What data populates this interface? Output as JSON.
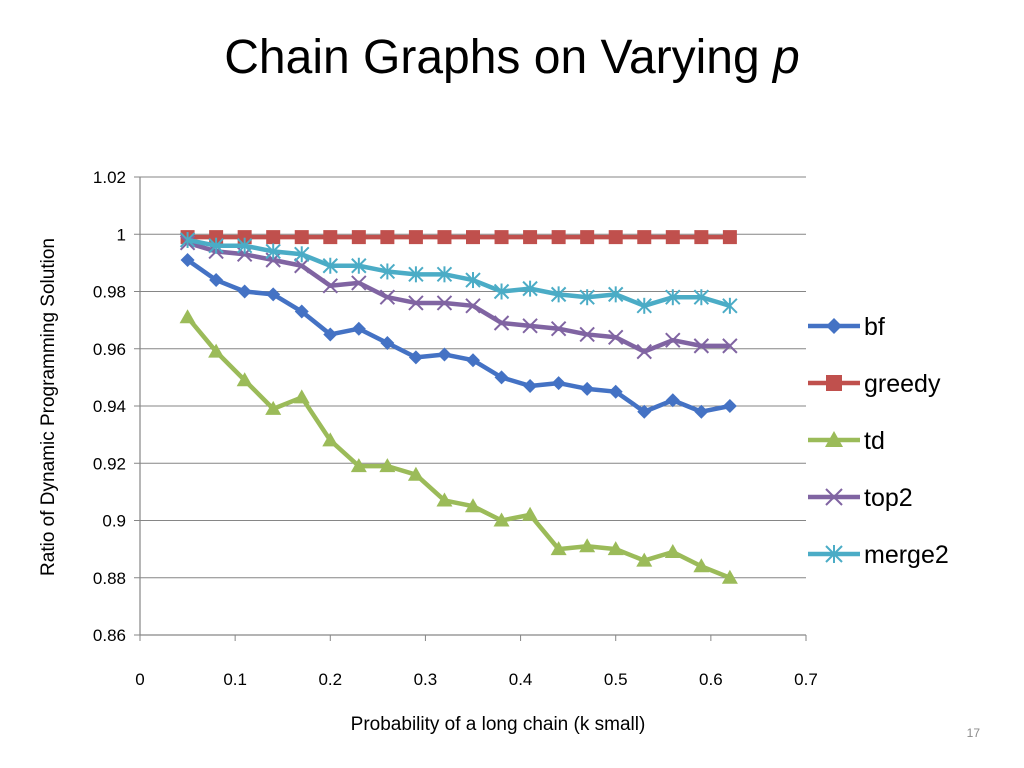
{
  "slide": {
    "title_main": "Chain Graphs on Varying ",
    "title_italic": "p",
    "page_number": "17"
  },
  "chart_data": {
    "type": "line",
    "title": "",
    "xlabel": "Probability of a long chain (k small)",
    "ylabel": "Ratio of Dynamic Programming Solution",
    "xlim": [
      0,
      0.7
    ],
    "ylim": [
      0.86,
      1.02
    ],
    "x_ticks": [
      "0",
      "0.1",
      "0.2",
      "0.3",
      "0.4",
      "0.5",
      "0.6",
      "0.7"
    ],
    "y_ticks": [
      "0.86",
      "0.88",
      "0.9",
      "0.92",
      "0.94",
      "0.96",
      "0.98",
      "1",
      "1.02"
    ],
    "grid": "horizontal",
    "legend_position": "right",
    "x": [
      0.05,
      0.08,
      0.11,
      0.14,
      0.17,
      0.2,
      0.23,
      0.26,
      0.29,
      0.32,
      0.35,
      0.38,
      0.41,
      0.44,
      0.47,
      0.5,
      0.53,
      0.56,
      0.59,
      0.62
    ],
    "series": [
      {
        "name": "bf",
        "color": "#4472C4",
        "marker": "diamond",
        "values": [
          0.991,
          0.984,
          0.98,
          0.979,
          0.973,
          0.965,
          0.967,
          0.962,
          0.957,
          0.958,
          0.956,
          0.95,
          0.947,
          0.948,
          0.946,
          0.945,
          0.938,
          0.942,
          0.938,
          0.94
        ]
      },
      {
        "name": "greedy",
        "color": "#C0504D",
        "marker": "square",
        "values": [
          0.999,
          0.999,
          0.999,
          0.999,
          0.999,
          0.999,
          0.999,
          0.999,
          0.999,
          0.999,
          0.999,
          0.999,
          0.999,
          0.999,
          0.999,
          0.999,
          0.999,
          0.999,
          0.999,
          0.999
        ]
      },
      {
        "name": "td",
        "color": "#9BBB59",
        "marker": "triangle",
        "values": [
          0.971,
          0.959,
          0.949,
          0.939,
          0.943,
          0.928,
          0.919,
          0.919,
          0.916,
          0.907,
          0.905,
          0.9,
          0.902,
          0.89,
          0.891,
          0.89,
          0.886,
          0.889,
          0.884,
          0.88
        ]
      },
      {
        "name": "top2",
        "color": "#8064A2",
        "marker": "x",
        "values": [
          0.997,
          0.994,
          0.993,
          0.991,
          0.989,
          0.982,
          0.983,
          0.978,
          0.976,
          0.976,
          0.975,
          0.969,
          0.968,
          0.967,
          0.965,
          0.964,
          0.959,
          0.963,
          0.961,
          0.961
        ]
      },
      {
        "name": "merge2",
        "color": "#4BACC6",
        "marker": "asterisk",
        "values": [
          0.998,
          0.996,
          0.996,
          0.994,
          0.993,
          0.989,
          0.989,
          0.987,
          0.986,
          0.986,
          0.984,
          0.98,
          0.981,
          0.979,
          0.978,
          0.979,
          0.975,
          0.978,
          0.978,
          0.975
        ]
      }
    ]
  }
}
